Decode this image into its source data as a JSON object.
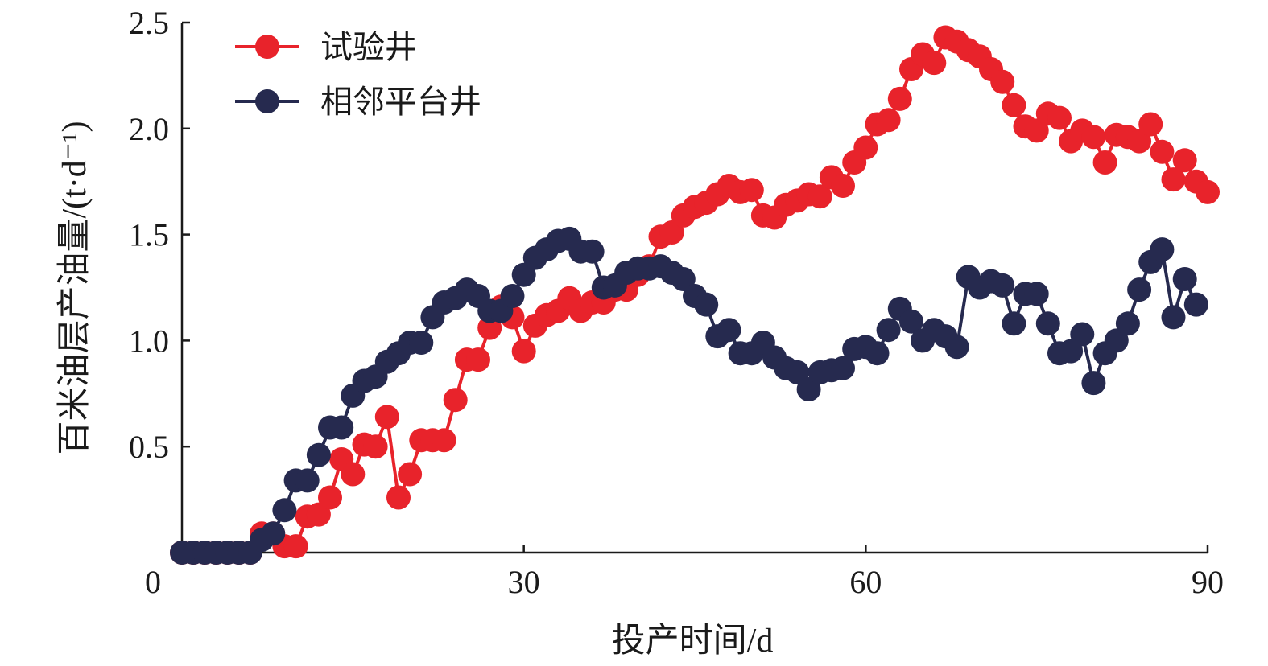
{
  "chart_data": {
    "type": "line",
    "xlabel": "投产时间/d",
    "ylabel": "百米油层产油量/(t·d⁻¹)",
    "xlim": [
      0,
      90
    ],
    "ylim": [
      0,
      2.5
    ],
    "x_ticks": [
      "0",
      "30",
      "60",
      "90"
    ],
    "y_ticks": [
      "0.5",
      "1.0",
      "1.5",
      "2.0",
      "2.5"
    ],
    "legend_position": "top-left",
    "grid": false,
    "series": [
      {
        "name": "试验井",
        "color": "#e8232b",
        "values": [
          [
            0,
            0
          ],
          [
            1,
            0
          ],
          [
            2,
            0
          ],
          [
            3,
            0
          ],
          [
            4,
            0
          ],
          [
            5,
            0
          ],
          [
            6,
            0
          ],
          [
            7,
            0.09
          ],
          [
            8,
            0.09
          ],
          [
            9,
            0.03
          ],
          [
            10,
            0.03
          ],
          [
            11,
            0.17
          ],
          [
            12,
            0.18
          ],
          [
            13,
            0.26
          ],
          [
            14,
            0.44
          ],
          [
            15,
            0.37
          ],
          [
            16,
            0.51
          ],
          [
            17,
            0.5
          ],
          [
            18,
            0.64
          ],
          [
            19,
            0.26
          ],
          [
            20,
            0.37
          ],
          [
            21,
            0.53
          ],
          [
            22,
            0.53
          ],
          [
            23,
            0.53
          ],
          [
            24,
            0.72
          ],
          [
            25,
            0.91
          ],
          [
            26,
            0.91
          ],
          [
            27,
            1.06
          ],
          [
            28,
            1.16
          ],
          [
            29,
            1.11
          ],
          [
            30,
            0.95
          ],
          [
            31,
            1.07
          ],
          [
            32,
            1.12
          ],
          [
            33,
            1.14
          ],
          [
            34,
            1.2
          ],
          [
            35,
            1.14
          ],
          [
            36,
            1.18
          ],
          [
            37,
            1.18
          ],
          [
            38,
            1.24
          ],
          [
            39,
            1.24
          ],
          [
            40,
            1.31
          ],
          [
            41,
            1.35
          ],
          [
            42,
            1.49
          ],
          [
            43,
            1.51
          ],
          [
            44,
            1.59
          ],
          [
            45,
            1.63
          ],
          [
            46,
            1.65
          ],
          [
            47,
            1.69
          ],
          [
            48,
            1.73
          ],
          [
            49,
            1.7
          ],
          [
            50,
            1.71
          ],
          [
            51,
            1.59
          ],
          [
            52,
            1.58
          ],
          [
            53,
            1.64
          ],
          [
            54,
            1.66
          ],
          [
            55,
            1.69
          ],
          [
            56,
            1.68
          ],
          [
            57,
            1.77
          ],
          [
            58,
            1.73
          ],
          [
            59,
            1.84
          ],
          [
            60,
            1.91
          ],
          [
            61,
            2.02
          ],
          [
            62,
            2.04
          ],
          [
            63,
            2.14
          ],
          [
            64,
            2.28
          ],
          [
            65,
            2.35
          ],
          [
            66,
            2.31
          ],
          [
            67,
            2.43
          ],
          [
            68,
            2.41
          ],
          [
            69,
            2.37
          ],
          [
            70,
            2.34
          ],
          [
            71,
            2.28
          ],
          [
            72,
            2.22
          ],
          [
            73,
            2.11
          ],
          [
            74,
            2.01
          ],
          [
            75,
            1.99
          ],
          [
            76,
            2.07
          ],
          [
            77,
            2.05
          ],
          [
            78,
            1.94
          ],
          [
            79,
            1.99
          ],
          [
            80,
            1.96
          ],
          [
            81,
            1.84
          ],
          [
            82,
            1.97
          ],
          [
            83,
            1.96
          ],
          [
            84,
            1.94
          ],
          [
            85,
            2.02
          ],
          [
            86,
            1.89
          ],
          [
            87,
            1.76
          ],
          [
            88,
            1.85
          ],
          [
            89,
            1.75
          ],
          [
            90,
            1.7
          ]
        ]
      },
      {
        "name": "相邻平台井",
        "color": "#262a4f",
        "values": [
          [
            0,
            0
          ],
          [
            1,
            0
          ],
          [
            2,
            0
          ],
          [
            3,
            0
          ],
          [
            4,
            0
          ],
          [
            5,
            0
          ],
          [
            6,
            0
          ],
          [
            7,
            0.06
          ],
          [
            8,
            0.09
          ],
          [
            9,
            0.2
          ],
          [
            10,
            0.34
          ],
          [
            11,
            0.34
          ],
          [
            12,
            0.46
          ],
          [
            13,
            0.59
          ],
          [
            14,
            0.59
          ],
          [
            15,
            0.74
          ],
          [
            16,
            0.81
          ],
          [
            17,
            0.83
          ],
          [
            18,
            0.9
          ],
          [
            19,
            0.94
          ],
          [
            20,
            0.99
          ],
          [
            21,
            0.99
          ],
          [
            22,
            1.11
          ],
          [
            23,
            1.18
          ],
          [
            24,
            1.2
          ],
          [
            25,
            1.24
          ],
          [
            26,
            1.21
          ],
          [
            27,
            1.14
          ],
          [
            28,
            1.14
          ],
          [
            29,
            1.21
          ],
          [
            30,
            1.31
          ],
          [
            31,
            1.39
          ],
          [
            32,
            1.43
          ],
          [
            33,
            1.47
          ],
          [
            34,
            1.48
          ],
          [
            35,
            1.42
          ],
          [
            36,
            1.42
          ],
          [
            37,
            1.25
          ],
          [
            38,
            1.26
          ],
          [
            39,
            1.32
          ],
          [
            40,
            1.34
          ],
          [
            41,
            1.34
          ],
          [
            42,
            1.35
          ],
          [
            43,
            1.32
          ],
          [
            44,
            1.29
          ],
          [
            45,
            1.21
          ],
          [
            46,
            1.17
          ],
          [
            47,
            1.02
          ],
          [
            48,
            1.05
          ],
          [
            49,
            0.94
          ],
          [
            50,
            0.94
          ],
          [
            51,
            0.99
          ],
          [
            52,
            0.92
          ],
          [
            53,
            0.87
          ],
          [
            54,
            0.85
          ],
          [
            55,
            0.77
          ],
          [
            56,
            0.85
          ],
          [
            57,
            0.86
          ],
          [
            58,
            0.87
          ],
          [
            59,
            0.96
          ],
          [
            60,
            0.97
          ],
          [
            61,
            0.94
          ],
          [
            62,
            1.05
          ],
          [
            63,
            1.15
          ],
          [
            64,
            1.09
          ],
          [
            65,
            1.0
          ],
          [
            66,
            1.05
          ],
          [
            67,
            1.02
          ],
          [
            68,
            0.97
          ],
          [
            69,
            1.3
          ],
          [
            70,
            1.25
          ],
          [
            71,
            1.28
          ],
          [
            72,
            1.26
          ],
          [
            73,
            1.08
          ],
          [
            74,
            1.22
          ],
          [
            75,
            1.22
          ],
          [
            76,
            1.08
          ],
          [
            77,
            0.94
          ],
          [
            78,
            0.95
          ],
          [
            79,
            1.03
          ],
          [
            80,
            0.8
          ],
          [
            81,
            0.94
          ],
          [
            82,
            1.0
          ],
          [
            83,
            1.08
          ],
          [
            84,
            1.24
          ],
          [
            85,
            1.37
          ],
          [
            86,
            1.43
          ],
          [
            87,
            1.11
          ],
          [
            88,
            1.29
          ],
          [
            89,
            1.17
          ]
        ]
      }
    ]
  }
}
